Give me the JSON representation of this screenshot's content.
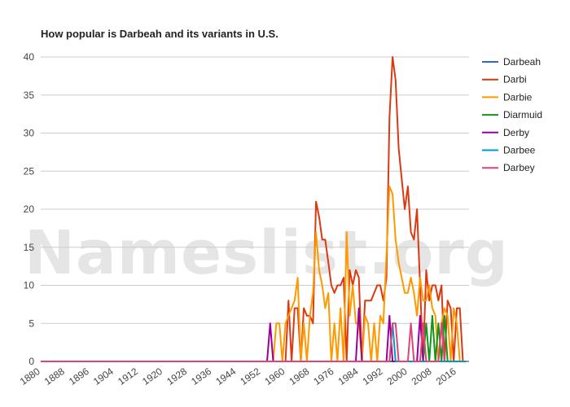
{
  "chart_data": {
    "type": "line",
    "title": "How popular is Darbeah and its variants in U.S.",
    "watermark": "Nameslist.org",
    "xlabel": "",
    "ylabel": "",
    "ylim": [
      0,
      40
    ],
    "xlim": [
      1880,
      2020
    ],
    "y_ticks": [
      "0",
      "5",
      "10",
      "15",
      "20",
      "25",
      "30",
      "35",
      "40"
    ],
    "x_ticks": [
      "1880",
      "1888",
      "1896",
      "1904",
      "1912",
      "1920",
      "1928",
      "1936",
      "1944",
      "1952",
      "1960",
      "1968",
      "1976",
      "1984",
      "1992",
      "2000",
      "2008",
      "2016"
    ],
    "grid": true,
    "legend_position": "right",
    "series": [
      {
        "name": "Darbeah",
        "color": "#3366cc",
        "points": [
          [
            1880,
            0
          ],
          [
            2019,
            0
          ]
        ]
      },
      {
        "name": "Darbi",
        "color": "#dc3912",
        "points": [
          [
            1880,
            0
          ],
          [
            1959,
            0
          ],
          [
            1960,
            0
          ],
          [
            1961,
            8
          ],
          [
            1962,
            0
          ],
          [
            1963,
            7
          ],
          [
            1964,
            7
          ],
          [
            1965,
            0
          ],
          [
            1966,
            7
          ],
          [
            1967,
            6
          ],
          [
            1968,
            6
          ],
          [
            1969,
            5
          ],
          [
            1970,
            21
          ],
          [
            1971,
            19
          ],
          [
            1972,
            16
          ],
          [
            1973,
            16
          ],
          [
            1974,
            13
          ],
          [
            1975,
            10
          ],
          [
            1976,
            9
          ],
          [
            1977,
            10
          ],
          [
            1978,
            10
          ],
          [
            1979,
            11
          ],
          [
            1980,
            0
          ],
          [
            1981,
            12
          ],
          [
            1982,
            10
          ],
          [
            1983,
            12
          ],
          [
            1984,
            11
          ],
          [
            1985,
            0
          ],
          [
            1986,
            8
          ],
          [
            1987,
            8
          ],
          [
            1988,
            8
          ],
          [
            1989,
            9
          ],
          [
            1990,
            10
          ],
          [
            1991,
            10
          ],
          [
            1992,
            8
          ],
          [
            1993,
            11
          ],
          [
            1994,
            32
          ],
          [
            1995,
            40
          ],
          [
            1996,
            37
          ],
          [
            1997,
            28
          ],
          [
            1998,
            24
          ],
          [
            1999,
            20
          ],
          [
            2000,
            23
          ],
          [
            2001,
            17
          ],
          [
            2002,
            16
          ],
          [
            2003,
            20
          ],
          [
            2004,
            10
          ],
          [
            2005,
            0
          ],
          [
            2006,
            12
          ],
          [
            2007,
            8
          ],
          [
            2008,
            10
          ],
          [
            2009,
            10
          ],
          [
            2010,
            8
          ],
          [
            2011,
            10
          ],
          [
            2012,
            0
          ],
          [
            2013,
            8
          ],
          [
            2014,
            7
          ],
          [
            2015,
            0
          ],
          [
            2016,
            7
          ],
          [
            2017,
            7
          ],
          [
            2018,
            0
          ]
        ]
      },
      {
        "name": "Darbie",
        "color": "#ff9900",
        "points": [
          [
            1880,
            0
          ],
          [
            1956,
            0
          ],
          [
            1957,
            5
          ],
          [
            1958,
            5
          ],
          [
            1959,
            0
          ],
          [
            1960,
            5
          ],
          [
            1961,
            6
          ],
          [
            1962,
            7
          ],
          [
            1963,
            8
          ],
          [
            1964,
            11
          ],
          [
            1965,
            0
          ],
          [
            1966,
            5
          ],
          [
            1967,
            0
          ],
          [
            1968,
            6
          ],
          [
            1969,
            9
          ],
          [
            1970,
            17
          ],
          [
            1971,
            12
          ],
          [
            1972,
            10
          ],
          [
            1973,
            7
          ],
          [
            1974,
            9
          ],
          [
            1975,
            0
          ],
          [
            1976,
            5
          ],
          [
            1977,
            0
          ],
          [
            1978,
            7
          ],
          [
            1979,
            0
          ],
          [
            1980,
            17
          ],
          [
            1981,
            6
          ],
          [
            1982,
            10
          ],
          [
            1983,
            5
          ],
          [
            1984,
            5
          ],
          [
            1985,
            0
          ],
          [
            1986,
            6
          ],
          [
            1987,
            5
          ],
          [
            1988,
            0
          ],
          [
            1989,
            5
          ],
          [
            1990,
            0
          ],
          [
            1991,
            6
          ],
          [
            1992,
            5
          ],
          [
            1993,
            14
          ],
          [
            1994,
            23
          ],
          [
            1995,
            22
          ],
          [
            1996,
            16
          ],
          [
            1997,
            13
          ],
          [
            1998,
            11
          ],
          [
            1999,
            9
          ],
          [
            2000,
            9
          ],
          [
            2001,
            11
          ],
          [
            2002,
            9
          ],
          [
            2003,
            6
          ],
          [
            2004,
            11
          ],
          [
            2005,
            8
          ],
          [
            2006,
            8
          ],
          [
            2007,
            10
          ],
          [
            2008,
            7
          ],
          [
            2009,
            6
          ],
          [
            2010,
            0
          ],
          [
            2011,
            5
          ],
          [
            2012,
            7
          ],
          [
            2013,
            6
          ],
          [
            2014,
            0
          ],
          [
            2015,
            7
          ],
          [
            2016,
            5
          ],
          [
            2017,
            0
          ]
        ]
      },
      {
        "name": "Diarmuid",
        "color": "#109618",
        "points": [
          [
            1880,
            0
          ],
          [
            2005,
            0
          ],
          [
            2006,
            5
          ],
          [
            2007,
            0
          ],
          [
            2008,
            6
          ],
          [
            2009,
            0
          ],
          [
            2010,
            5
          ],
          [
            2011,
            0
          ],
          [
            2012,
            6
          ],
          [
            2013,
            0
          ]
        ]
      },
      {
        "name": "Derby",
        "color": "#990099",
        "points": [
          [
            1880,
            0
          ],
          [
            1954,
            0
          ],
          [
            1955,
            5
          ],
          [
            1956,
            0
          ],
          [
            1983,
            0
          ],
          [
            1984,
            7
          ],
          [
            1985,
            0
          ],
          [
            1993,
            0
          ],
          [
            1994,
            6
          ],
          [
            1995,
            0
          ],
          [
            2003,
            0
          ],
          [
            2004,
            6
          ],
          [
            2005,
            0
          ]
        ]
      },
      {
        "name": "Darbee",
        "color": "#0099c6",
        "points": [
          [
            1880,
            0
          ],
          [
            1994,
            0
          ],
          [
            1995,
            5
          ],
          [
            1996,
            0
          ],
          [
            2019,
            0
          ]
        ]
      },
      {
        "name": "Darbey",
        "color": "#dd4477",
        "points": [
          [
            1880,
            0
          ],
          [
            1994,
            0
          ],
          [
            1995,
            5
          ],
          [
            1996,
            5
          ],
          [
            1997,
            0
          ],
          [
            2000,
            0
          ],
          [
            2001,
            5
          ],
          [
            2002,
            0
          ],
          [
            2004,
            0
          ],
          [
            2005,
            5
          ],
          [
            2006,
            0
          ],
          [
            2010,
            0
          ],
          [
            2011,
            5
          ],
          [
            2012,
            0
          ]
        ]
      }
    ]
  }
}
